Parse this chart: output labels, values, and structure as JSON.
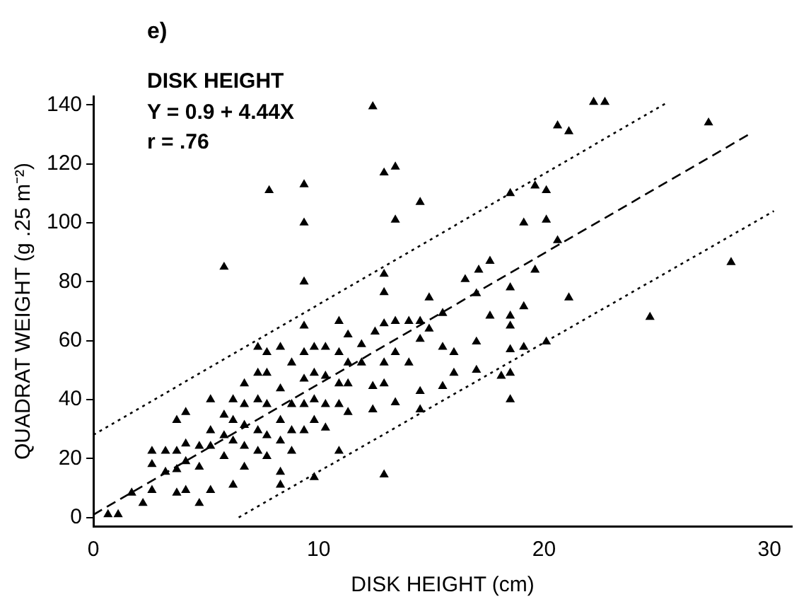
{
  "chart_data": {
    "type": "scatter",
    "title": "DISK HEIGHT",
    "xlabel": "DISK HEIGHT (cm)",
    "ylabel": "QUADRAT WEIGHT (g .25 m⁻²)",
    "annotations": [
      "e)",
      "Y = 0.9 + 4.44X",
      "r = .76"
    ],
    "xlim": [
      0,
      31
    ],
    "ylim": [
      -3,
      143
    ],
    "xticks": [
      0,
      10,
      20,
      30
    ],
    "yticks": [
      0,
      20,
      40,
      60,
      80,
      100,
      120,
      140
    ],
    "grid": false,
    "legend": false,
    "series": [
      {
        "color": "#000000",
        "marker": "triangle",
        "x": [
          12.4,
          22.2,
          22.7,
          20.6,
          21.1,
          27.3,
          12.9,
          13.4,
          7.8,
          9.35,
          9.35,
          9.35,
          14.5,
          13.4,
          18.5,
          19.6,
          20.1,
          19.1,
          20.1,
          20.6,
          19.6,
          18.5,
          19.1,
          21.1,
          24.7,
          28.3,
          20.1,
          19.1,
          18.5,
          18.5,
          18.5,
          18.1,
          18.5,
          18.5,
          17.6,
          17.0,
          16.5,
          17.1,
          17.6,
          17.0,
          17.0,
          16.0,
          16.0,
          15.5,
          14.9,
          15.5,
          14.9,
          14.5,
          14.5,
          14.5,
          14.5,
          15.5,
          12.9,
          12.9,
          12.9,
          13.4,
          14.0,
          13.4,
          13.4,
          12.9,
          14.0,
          12.9,
          12.9,
          12.4,
          12.5,
          12.4,
          11.9,
          11.9,
          11.3,
          11.3,
          11.3,
          10.9,
          10.9,
          10.9,
          10.9,
          11.3,
          10.9,
          9.8,
          10.3,
          10.3,
          10.3,
          10.3,
          9.8,
          9.8,
          9.8,
          9.8,
          9.35,
          9.35,
          9.35,
          9.35,
          9.35,
          8.8,
          8.8,
          8.8,
          8.8,
          8.3,
          8.3,
          8.3,
          8.3,
          8.3,
          8.3,
          7.7,
          7.7,
          7.7,
          7.7,
          7.7,
          7.3,
          7.3,
          7.3,
          7.3,
          7.3,
          6.7,
          6.7,
          6.7,
          6.7,
          6.7,
          6.2,
          6.2,
          6.2,
          6.2,
          5.8,
          5.8,
          5.8,
          5.8,
          5.2,
          5.2,
          5.2,
          5.2,
          4.7,
          4.7,
          4.7,
          4.1,
          4.1,
          4.1,
          4.1,
          3.7,
          3.7,
          3.7,
          3.7,
          3.2,
          3.2,
          2.6,
          2.6,
          2.6,
          2.2,
          1.7,
          1.1,
          0.65
        ],
        "values": [
          139.5,
          141,
          141,
          133,
          131,
          134,
          117,
          119,
          111,
          113,
          100,
          80,
          107,
          101,
          110,
          112.6,
          111,
          100,
          101,
          94,
          84,
          78,
          71.6,
          74.6,
          68,
          86.6,
          59.6,
          57.8,
          57,
          49,
          40,
          48,
          68.4,
          65,
          68.4,
          76,
          80.8,
          84,
          87,
          59.6,
          50,
          56,
          49,
          57.8,
          74.6,
          69.3,
          64,
          66.6,
          60.5,
          42.8,
          36.6,
          44.5,
          82.6,
          76.4,
          65.8,
          66.6,
          66.6,
          56,
          39,
          14.5,
          52.5,
          52.5,
          45.4,
          44.5,
          63,
          36.6,
          58.7,
          52.5,
          62,
          52.5,
          45.4,
          66.6,
          56,
          45.4,
          38.4,
          35.7,
          22.5,
          13.6,
          57.8,
          48,
          38.4,
          30.4,
          57.8,
          49,
          40,
          33,
          65,
          56,
          47,
          38.4,
          29.5,
          52.5,
          29.5,
          22.5,
          38.4,
          57.8,
          43.7,
          33,
          26,
          15.4,
          11,
          56,
          49,
          38.4,
          27.8,
          20.7,
          57.8,
          49,
          40,
          29.5,
          22.5,
          45.4,
          38.4,
          31.3,
          24.2,
          17.1,
          40,
          26,
          11,
          33,
          85,
          34.8,
          27.8,
          20.7,
          40,
          29.5,
          24.2,
          9.2,
          24.2,
          17.1,
          4.8,
          35.7,
          25,
          19,
          9.2,
          33,
          22.5,
          16.3,
          8.3,
          22.5,
          15.4,
          22.5,
          18,
          9.2,
          4.8,
          8.3,
          1,
          1
        ]
      },
      {
        "type": "line",
        "color": "#000000",
        "marker": "none",
        "line_style": "dashed",
        "x": [
          0,
          29.2
        ],
        "values": [
          0.9,
          130.5
        ]
      },
      {
        "type": "line",
        "color": "#000000",
        "marker": "none",
        "line_style": "dotted",
        "x": [
          0,
          25.5
        ],
        "values": [
          28,
          141
        ]
      },
      {
        "type": "line",
        "color": "#000000",
        "marker": "none",
        "line_style": "dotted",
        "x": [
          6.45,
          30.2
        ],
        "values": [
          0,
          104
        ]
      }
    ]
  }
}
